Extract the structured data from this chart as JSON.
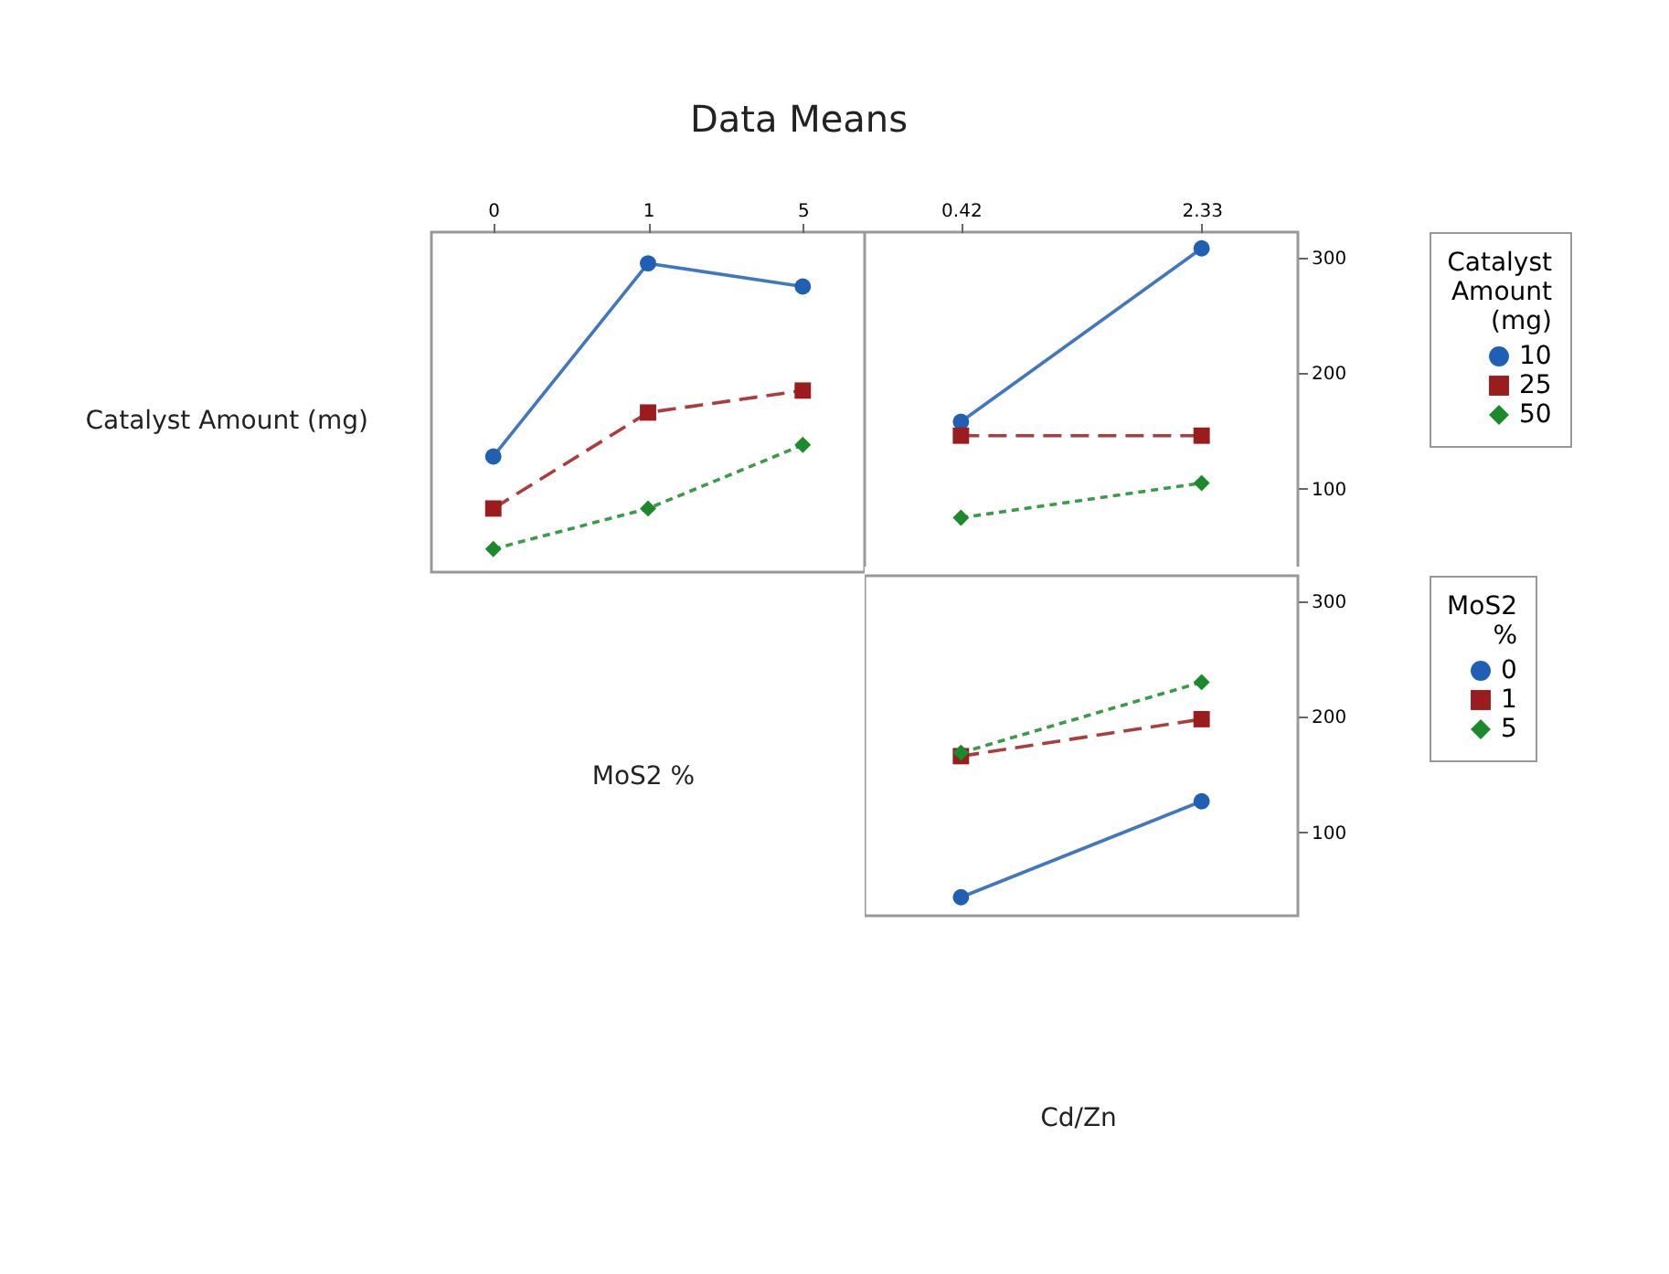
{
  "chart_data": [
    {
      "type": "line",
      "title": "Data Means",
      "ylabel": "Catalyst Amount (mg)",
      "xlabel": "MoS2 %",
      "categories": [
        "0",
        "1",
        "5"
      ],
      "ylim": [
        28,
        322
      ],
      "yticks": [
        100,
        200,
        300
      ],
      "tick_labels": "x",
      "legend": false,
      "series": [
        {
          "color": "#1f5fb4",
          "marker": "circle",
          "line_style": "solid",
          "values": [
            128,
            295,
            275
          ]
        },
        {
          "color": "#9b1c1c",
          "marker": "square",
          "line_style": "dashed",
          "values": [
            83,
            166,
            185
          ]
        },
        {
          "color": "#1a8a2a",
          "marker": "diamond",
          "line_style": "dotted",
          "values": [
            48,
            83,
            138
          ]
        }
      ]
    },
    {
      "type": "line",
      "legend_title": "Catalyst Amount (mg)",
      "categories": [
        "0.42",
        "2.33"
      ],
      "ylim": [
        28,
        322
      ],
      "yticks": [
        100,
        200,
        300
      ],
      "legend": "right",
      "series": [
        {
          "name": "10",
          "color": "#1f5fb4",
          "marker": "circle",
          "line_style": "solid",
          "values": [
            158,
            308
          ]
        },
        {
          "name": "25",
          "color": "#9b1c1c",
          "marker": "square",
          "line_style": "dashed",
          "values": [
            146,
            146
          ]
        },
        {
          "name": "50",
          "color": "#1a8a2a",
          "marker": "diamond",
          "line_style": "dotted",
          "values": [
            75,
            105
          ]
        }
      ]
    },
    {
      "type": "line",
      "legend_title": "MoS2 %",
      "xlabel": "Cd/Zn",
      "categories": [
        "0.42",
        "2.33"
      ],
      "ylim": [
        28,
        322
      ],
      "yticks": [
        100,
        200,
        300
      ],
      "tick_labels": "y",
      "legend": "right",
      "series": [
        {
          "name": "0",
          "color": "#1f5fb4",
          "marker": "circle",
          "line_style": "solid",
          "values": [
            44,
            127
          ]
        },
        {
          "name": "1",
          "color": "#9b1c1c",
          "marker": "square",
          "line_style": "dashed",
          "values": [
            166,
            198
          ]
        },
        {
          "name": "5",
          "color": "#1a8a2a",
          "marker": "diamond",
          "line_style": "dotted",
          "values": [
            169,
            230
          ]
        }
      ]
    }
  ]
}
